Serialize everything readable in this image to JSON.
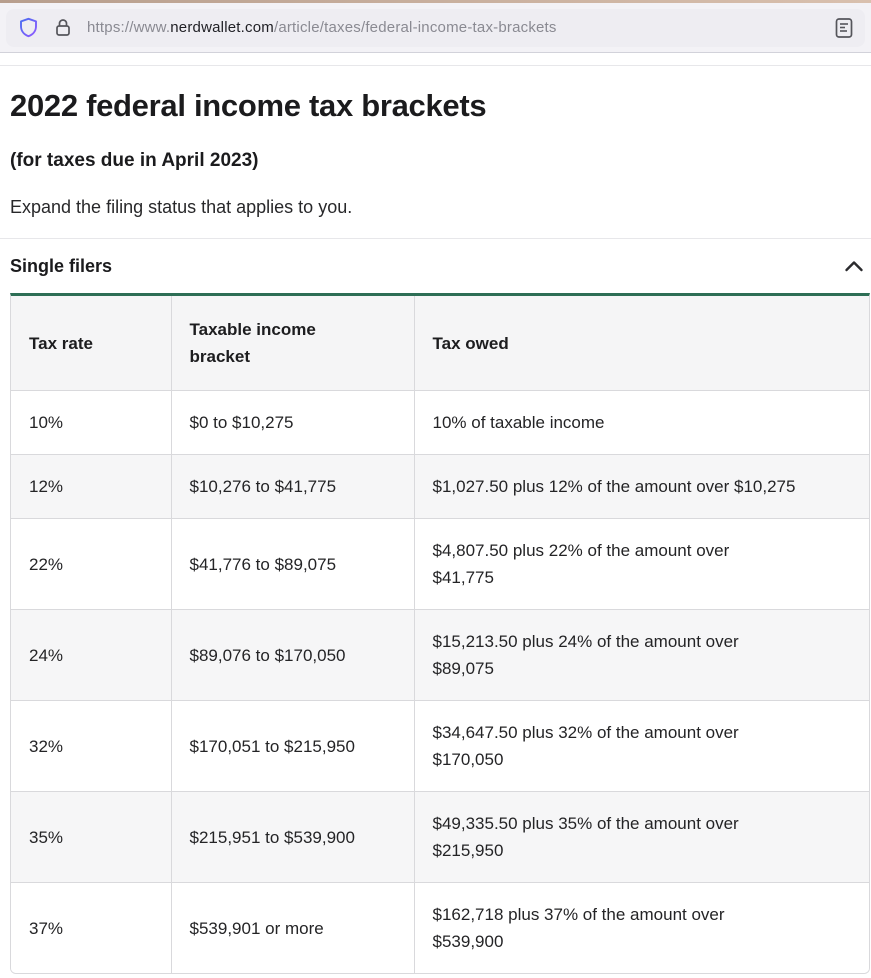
{
  "browser": {
    "url_prefix": "https://www.",
    "url_domain": "nerdwallet.com",
    "url_path": "/article/taxes/federal-income-tax-brackets",
    "icons": {
      "shield": "tracking-protection-shield",
      "lock": "https-lock",
      "reader": "reader-view"
    }
  },
  "article": {
    "title": "2022 federal income tax brackets",
    "subtitle": "(for taxes due in April 2023)",
    "intro": "Expand the filing status that applies to you."
  },
  "accordion": {
    "label": "Single filers",
    "state": "expanded",
    "chevron": "chevron-up"
  },
  "table": {
    "headers": [
      "Tax rate",
      "Taxable income bracket",
      "Tax owed"
    ],
    "rows": [
      {
        "rate": "10%",
        "bracket": "$0 to $10,275",
        "owed": [
          "10% of taxable income"
        ]
      },
      {
        "rate": "12%",
        "bracket": "$10,276 to $41,775",
        "owed": [
          "$1,027.50 plus 12% of the amount over $10,275"
        ]
      },
      {
        "rate": "22%",
        "bracket": "$41,776 to $89,075",
        "owed": [
          "$4,807.50 plus 22% of the amount over",
          "$41,775"
        ]
      },
      {
        "rate": "24%",
        "bracket": "$89,076 to $170,050",
        "owed": [
          "$15,213.50 plus 24% of the amount over",
          "$89,075"
        ]
      },
      {
        "rate": "32%",
        "bracket": "$170,051 to $215,950",
        "owed": [
          "$34,647.50 plus 32% of the amount over",
          "$170,050"
        ]
      },
      {
        "rate": "35%",
        "bracket": "$215,951 to $539,900",
        "owed": [
          "$49,335.50 plus 35% of the amount over",
          "$215,950"
        ]
      },
      {
        "rate": "37%",
        "bracket": "$539,901 or more",
        "owed": [
          "$162,718 plus 37% of the amount over",
          "$539,900"
        ]
      }
    ]
  },
  "colors": {
    "accent_green": "#2d6e55",
    "stripe": "#f6f6f7",
    "table_border": "#d9d9dc",
    "top_strip_tan": "#c3a894",
    "toolbar_bg": "#f3f2f6",
    "urlbar_bg": "#eeedf2",
    "url_muted_text": "#8a8a92"
  }
}
